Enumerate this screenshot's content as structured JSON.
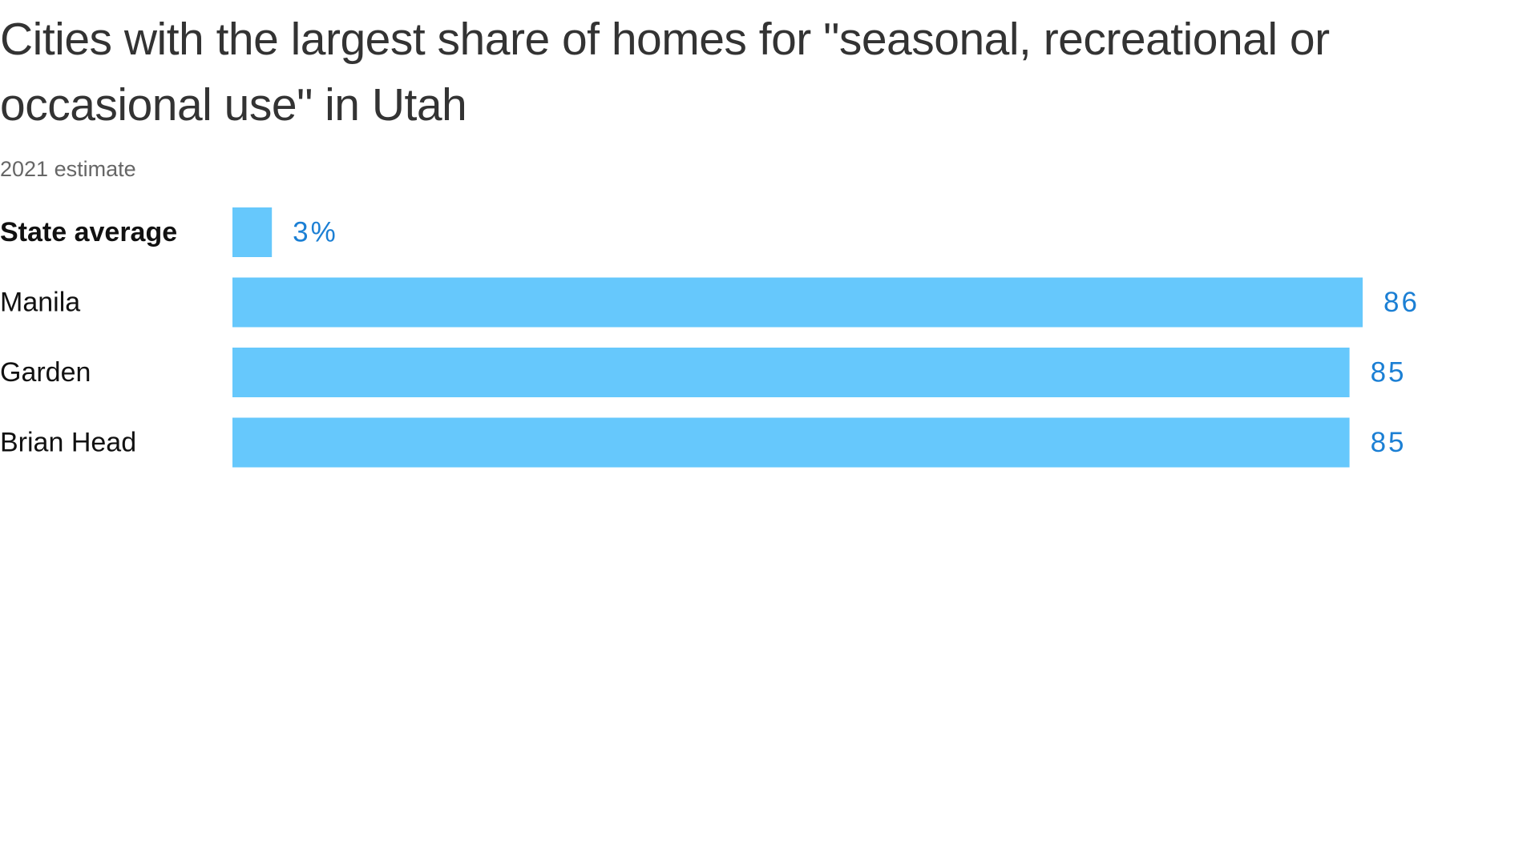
{
  "chart_data": {
    "type": "bar",
    "orientation": "horizontal",
    "title": "Cities with the largest share of homes for \"seasonal, recreational or occasional use\" in Utah",
    "subtitle": "2021 estimate",
    "categories": [
      "State average",
      "Manila",
      "Garden",
      "Brian Head"
    ],
    "values": [
      3,
      86,
      85,
      85
    ],
    "value_labels": [
      "3%",
      "86",
      "85",
      "85"
    ],
    "color": "#66c8fc",
    "label_color": "#1b7fd4"
  }
}
